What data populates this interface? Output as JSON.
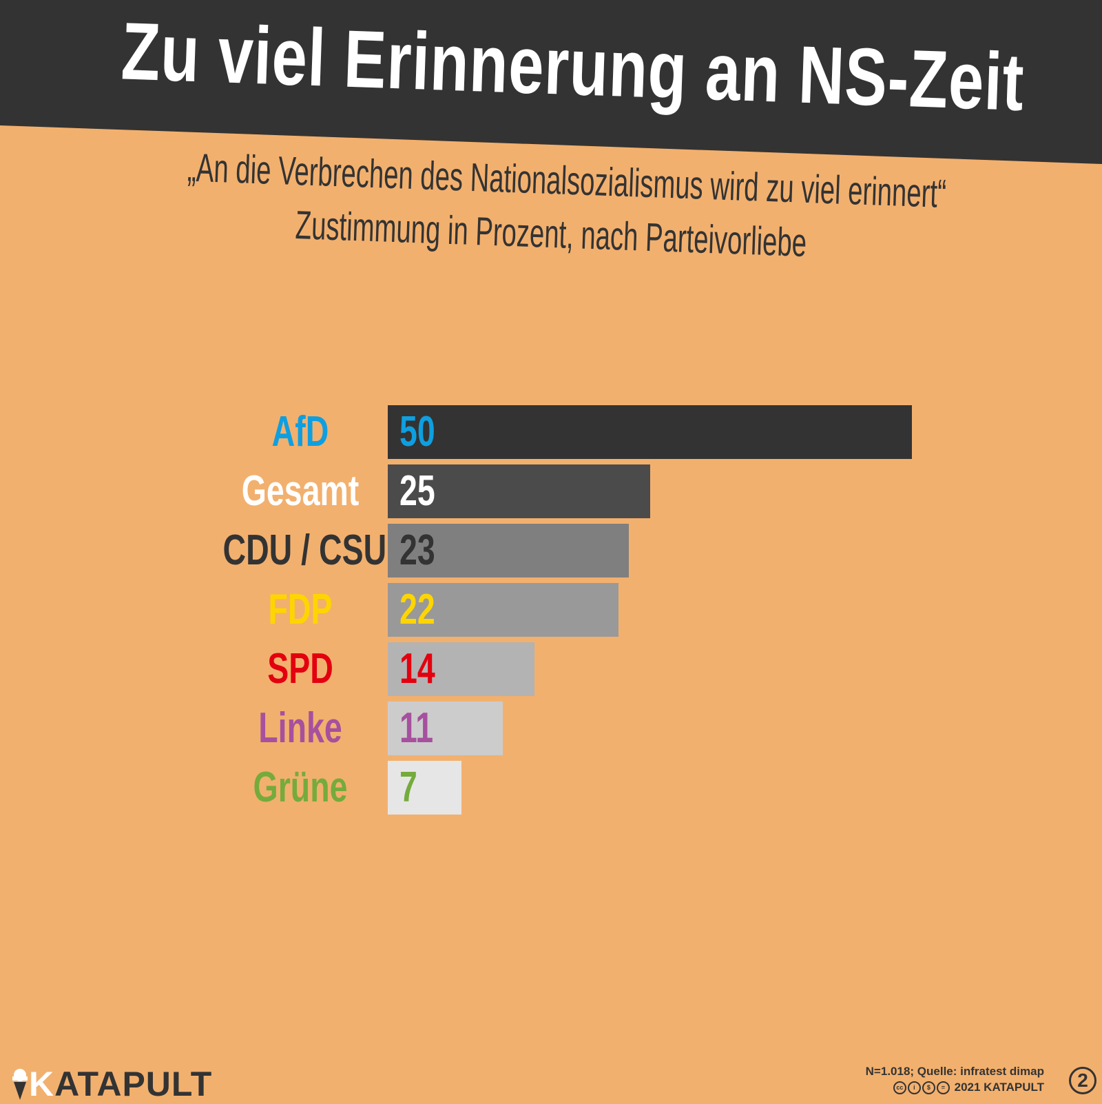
{
  "header": {
    "title": "Zu viel Erinnerung an NS-Zeit",
    "subtitle_line1": "„An die Verbrechen des Nationalsozialismus wird zu viel erinnert“",
    "subtitle_line2": "Zustimmung in Prozent, nach Parteivorliebe"
  },
  "chart_data": {
    "type": "bar",
    "orientation": "horizontal",
    "title": "Zu viel Erinnerung an NS-Zeit",
    "subtitle": "„An die Verbrechen des Nationalsozialismus wird zu viel erinnert“ Zustimmung in Prozent, nach Parteivorliebe",
    "categories": [
      "AfD",
      "Gesamt",
      "CDU / CSU",
      "FDP",
      "SPD",
      "Linke",
      "Grüne"
    ],
    "values": [
      50,
      25,
      23,
      22,
      14,
      11,
      7
    ],
    "value_labels": [
      "50",
      "25",
      "23",
      "22",
      "14",
      "11",
      "7"
    ],
    "label_colors": [
      "#0e9fe0",
      "#ffffff",
      "#333333",
      "#ffd500",
      "#e3000f",
      "#a6509e",
      "#75ab3c"
    ],
    "bar_colors": [
      "#333333",
      "#4b4b4b",
      "#7f7f7f",
      "#999999",
      "#b3b3b3",
      "#cccccc",
      "#e6e6e6"
    ],
    "xlim": [
      0,
      50
    ],
    "grid": false,
    "legend": "none"
  },
  "footer": {
    "source": "N=1.018; Quelle: infratest dimap",
    "copyright": "2021 KATAPULT",
    "page_number": "2",
    "logo_k": "K",
    "logo_rest": "ATAPULT"
  },
  "colors": {
    "background": "#f2b06e",
    "header": "#333333"
  }
}
